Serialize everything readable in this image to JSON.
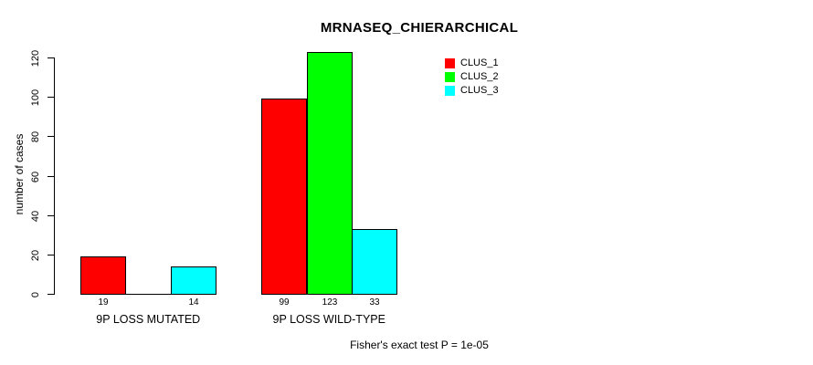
{
  "chart_data": {
    "type": "bar",
    "title": "MRNASEQ_CHIERARCHICAL",
    "categories": [
      "9P LOSS MUTATED",
      "9P LOSS WILD-TYPE"
    ],
    "series": [
      {
        "name": "CLUS_1",
        "color": "#ff0000",
        "values": [
          19,
          99
        ]
      },
      {
        "name": "CLUS_2",
        "color": "#00ff00",
        "values": [
          0,
          123
        ]
      },
      {
        "name": "CLUS_3",
        "color": "#00ffff",
        "values": [
          14,
          33
        ]
      }
    ],
    "ylabel": "number of cases",
    "xlabel": "",
    "ylim": [
      0,
      120
    ],
    "yticks": [
      0,
      20,
      40,
      60,
      80,
      100,
      120
    ],
    "ytick_labels": [
      "0",
      "20",
      "40",
      "60",
      "80",
      "100",
      "120"
    ],
    "bar_value_labels": {
      "show": true,
      "hide_zero": true
    },
    "legend_position": "top-right-inside",
    "legend_border": false,
    "grid": false,
    "annotation": "Fisher's exact test P = 1e-05"
  }
}
